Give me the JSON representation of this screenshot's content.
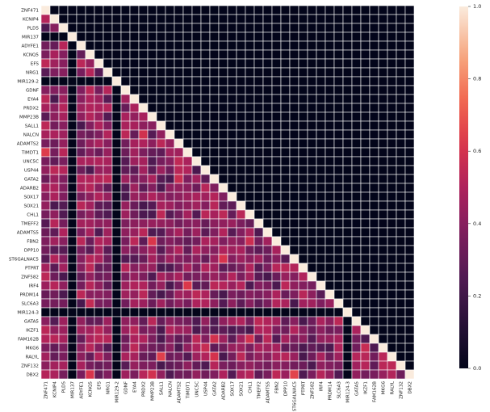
{
  "chart_data": {
    "type": "heatmap",
    "labels": [
      "ZNF471",
      "KCNIP4",
      "PLD5",
      "MIR137",
      "ADYFE1",
      "KCNQ5",
      "EFS",
      "NRG1",
      "MIR129-2",
      "GDNF",
      "EYA4",
      "PRDX2",
      "MMP23B",
      "SALL1",
      "NALCN",
      "ADAMTS2",
      "TIMDT1",
      "UNC5C",
      "USP44",
      "GATA2",
      "ADARB2",
      "SOX17",
      "SOX21",
      "CHL1",
      "TMEFF2",
      "ADAMTS5",
      "FBN2",
      "DPP10",
      "ST6GALNAC5",
      "PTPRT",
      "ZNF582",
      "IRF4",
      "PRDM14",
      "SLC6A3",
      "MIR124-3",
      "GATA5",
      "IKZF1",
      "FAM162B",
      "MKG6",
      "RALYL",
      "ZNF132",
      "DBX2"
    ],
    "zero_labels": [
      "MIR137",
      "MIR129-2",
      "MIR124-3"
    ],
    "value_range": [
      0.0,
      1.0
    ],
    "colormap": "rocket",
    "lower_triangle_values": "estimated 0.2-0.6 correlation, zero for MIR rows/cols, 1.0 on diagonal",
    "colorbar_ticks": [
      "0.0",
      "0.2",
      "0.4",
      "0.6",
      "0.8",
      "1.0"
    ]
  }
}
